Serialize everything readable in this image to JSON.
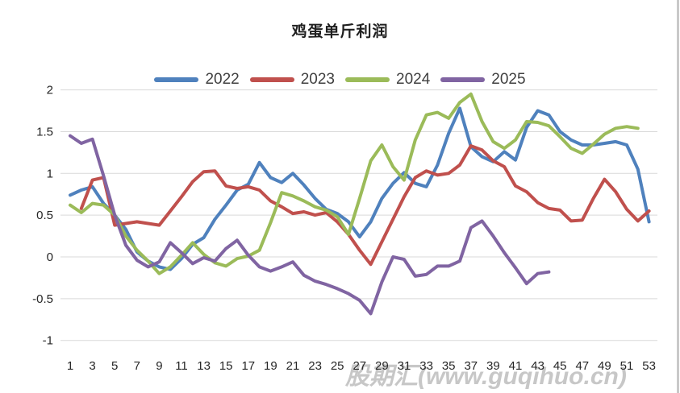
{
  "page": {
    "watermark": "股期汇(www.guqihuo.cn)"
  },
  "chart_data": {
    "type": "line",
    "title": "鸡蛋单斤利润",
    "xlabel": "",
    "ylabel": "",
    "grid": true,
    "legend_position": "top",
    "x_axis": {
      "categories": [
        1,
        2,
        3,
        4,
        5,
        6,
        7,
        8,
        9,
        10,
        11,
        12,
        13,
        14,
        15,
        16,
        17,
        18,
        19,
        20,
        21,
        22,
        23,
        24,
        25,
        26,
        27,
        28,
        29,
        30,
        31,
        32,
        33,
        34,
        35,
        36,
        37,
        38,
        39,
        40,
        41,
        42,
        43,
        44,
        45,
        46,
        47,
        48,
        49,
        50,
        51,
        52,
        53
      ],
      "shown_tick_labels": [
        "1",
        "3",
        "5",
        "7",
        "9",
        "11",
        "13",
        "15",
        "17",
        "19",
        "21",
        "23",
        "25",
        "27",
        "29",
        "31",
        "33",
        "35",
        "37",
        "39",
        "41",
        "43",
        "45",
        "47",
        "49",
        "51",
        "53"
      ]
    },
    "y_axis": {
      "min": -1,
      "max": 2,
      "step": 0.5,
      "tick_labels": [
        "2",
        "1.5",
        "1",
        "0.5",
        "0",
        "-0.5",
        "-1"
      ]
    },
    "series": [
      {
        "name": "2022",
        "color": "#4F81BD",
        "values": [
          0.74,
          0.8,
          0.84,
          0.64,
          0.5,
          0.33,
          0.06,
          -0.05,
          -0.12,
          -0.15,
          -0.02,
          0.15,
          0.23,
          0.45,
          0.62,
          0.8,
          0.87,
          1.13,
          0.95,
          0.89,
          1.0,
          0.86,
          0.7,
          0.57,
          0.52,
          0.42,
          0.24,
          0.42,
          0.7,
          0.88,
          1.01,
          0.88,
          0.84,
          1.1,
          1.48,
          1.78,
          1.32,
          1.2,
          1.14,
          1.26,
          1.16,
          1.55,
          1.75,
          1.7,
          1.5,
          1.4,
          1.34,
          1.34,
          1.36,
          1.38,
          1.34,
          1.05,
          0.42
        ]
      },
      {
        "name": "2023",
        "color": "#C0504D",
        "values": [
          null,
          0.58,
          0.92,
          0.95,
          0.38,
          0.4,
          0.42,
          0.4,
          0.38,
          0.55,
          0.72,
          0.9,
          1.02,
          1.03,
          0.85,
          0.82,
          0.84,
          0.8,
          0.67,
          0.6,
          0.52,
          0.54,
          0.5,
          0.53,
          0.42,
          0.27,
          0.08,
          -0.09,
          0.18,
          0.45,
          0.72,
          0.95,
          1.03,
          0.98,
          1.0,
          1.1,
          1.33,
          1.28,
          1.15,
          1.08,
          0.85,
          0.78,
          0.65,
          0.58,
          0.56,
          0.43,
          0.44,
          0.7,
          0.93,
          0.78,
          0.57,
          0.43,
          0.55
        ]
      },
      {
        "name": "2024",
        "color": "#9BBB59",
        "values": [
          0.62,
          0.53,
          0.64,
          0.62,
          0.5,
          0.25,
          0.08,
          -0.05,
          -0.2,
          -0.12,
          0.02,
          0.17,
          0.03,
          -0.07,
          -0.11,
          -0.02,
          0.01,
          0.08,
          0.41,
          0.77,
          0.73,
          0.67,
          0.6,
          0.56,
          0.48,
          0.27,
          0.7,
          1.15,
          1.34,
          1.08,
          0.92,
          1.4,
          1.7,
          1.73,
          1.66,
          1.85,
          1.95,
          1.62,
          1.38,
          1.3,
          1.4,
          1.62,
          1.61,
          1.57,
          1.44,
          1.3,
          1.24,
          1.35,
          1.47,
          1.54,
          1.56,
          1.54,
          null
        ]
      },
      {
        "name": "2025",
        "color": "#8064A2",
        "values": [
          1.45,
          1.36,
          1.41,
          0.97,
          0.5,
          0.14,
          -0.04,
          -0.12,
          -0.06,
          0.17,
          0.05,
          -0.08,
          -0.01,
          -0.05,
          0.1,
          0.2,
          0.02,
          -0.12,
          -0.17,
          -0.12,
          -0.06,
          -0.22,
          -0.29,
          -0.33,
          -0.38,
          -0.44,
          -0.52,
          -0.68,
          -0.3,
          0.0,
          -0.03,
          -0.23,
          -0.21,
          -0.11,
          -0.11,
          -0.05,
          0.35,
          0.43,
          0.25,
          0.05,
          -0.13,
          -0.32,
          -0.2,
          -0.18,
          null,
          null,
          null,
          null,
          null,
          null,
          null,
          null,
          null
        ]
      }
    ],
    "style": {
      "gridline_color": "#D9D9D9",
      "axis_text_color": "#262626",
      "line_width": 4
    }
  }
}
